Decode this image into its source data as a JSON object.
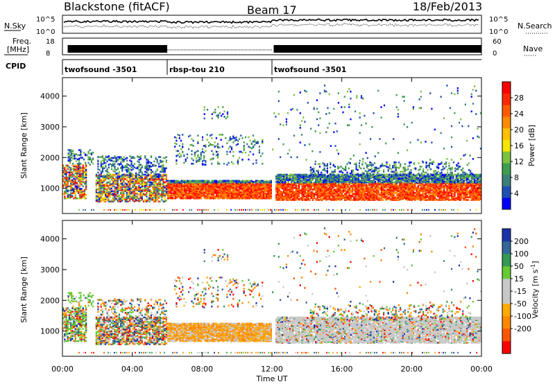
{
  "header": {
    "station": "Blackstone (fitACF)",
    "beam": "Beam 17",
    "date": "18/Feb/2013"
  },
  "panels": {
    "nsky_label": "N.Sky",
    "nsky_ticks": [
      "10^5",
      "10^0"
    ],
    "nsearch_label": "N.Search",
    "freq_label_1": "Freq.",
    "freq_label_2": "[MHz]",
    "freq_ticks": [
      "18",
      "8"
    ],
    "nave_label": "Nave",
    "nave_ticks": [
      "60",
      "0"
    ],
    "cpid_label": "CPID"
  },
  "colors": {
    "power": [
      "#0000ff",
      "#1e4fb4",
      "#3a7f7a",
      "#3d9e4f",
      "#7dc23f",
      "#f4e600",
      "#ffc000",
      "#ff8c00",
      "#ff5a00",
      "#ff2800",
      "#ff0000"
    ],
    "velocity": [
      "#ff0000",
      "#ff5500",
      "#ff8800",
      "#ffaa00",
      "#c8c8c8",
      "#c8c8c8",
      "#66cc33",
      "#339955",
      "#336699",
      "#1a33aa"
    ]
  },
  "chart_data": [
    {
      "type": "heatmap",
      "name": "power",
      "xlabel": "Time UT",
      "ylabel": "Slant Range [km]",
      "x_ticks": [
        "00:00",
        "04:00",
        "08:00",
        "12:00",
        "16:00",
        "20:00",
        "00:00"
      ],
      "xlim_hours": [
        0,
        24
      ],
      "ylim": [
        180,
        4600
      ],
      "y_ticks": [
        1000,
        2000,
        3000,
        4000
      ],
      "colorbar": {
        "label": "Power [dB]",
        "range": [
          0,
          32
        ],
        "ticks": [
          4,
          8,
          12,
          16,
          20,
          24,
          28
        ]
      },
      "cpid_segments": [
        {
          "start": 0,
          "end": 6,
          "label": "twofsound -3501"
        },
        {
          "start": 6,
          "end": 12,
          "label": "rbsp-tou 210"
        },
        {
          "start": 12,
          "end": 24,
          "label": "twofsound -3501"
        }
      ]
    },
    {
      "type": "heatmap",
      "name": "velocity",
      "xlabel": "Time UT",
      "ylabel": "Slant Range [km]",
      "x_ticks": [
        "00:00",
        "04:00",
        "08:00",
        "12:00",
        "16:00",
        "20:00",
        "00:00"
      ],
      "xlim_hours": [
        0,
        24
      ],
      "ylim": [
        180,
        4600
      ],
      "y_ticks": [
        1000,
        2000,
        3000,
        4000
      ],
      "colorbar": {
        "label": "Velocity [m s-1]",
        "ticks": [
          200,
          100,
          50,
          15,
          -15,
          -50,
          -100,
          -200
        ]
      }
    }
  ]
}
